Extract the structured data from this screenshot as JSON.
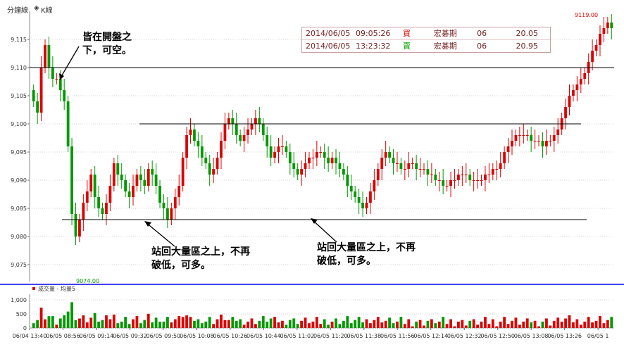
{
  "toolbar": {
    "minute_label": "分鐘線",
    "k_label": "K線"
  },
  "annotations": {
    "top_left": [
      "皆在開盤之",
      "下，可空。"
    ],
    "bottom_left": [
      "站回大量區之上，不再",
      "破低，可多。"
    ],
    "bottom_right": [
      "站回大量區之上，不再",
      "破低，可多。"
    ]
  },
  "trades": [
    {
      "date": "2014/06/05",
      "time": "09:05:26",
      "side": "買",
      "name": "宏碁期",
      "qty": "06",
      "price": "20.05",
      "side_color": "#dd0000"
    },
    {
      "date": "2014/06/05",
      "time": "13:23:32",
      "side": "賣",
      "name": "宏碁期",
      "qty": "06",
      "price": "20.95",
      "side_color": "#00a000"
    }
  ],
  "volume_legend": {
    "label": "成交量 - 均量5"
  },
  "chart_data": {
    "type": "candlestick",
    "price_axis": {
      "ylim": [
        9072,
        9120
      ],
      "ticks": [
        9075,
        9080,
        9085,
        9090,
        9095,
        9100,
        9105,
        9110,
        9115
      ]
    },
    "volume_axis": {
      "ylim": [
        0,
        1200
      ],
      "ticks": [
        0,
        500,
        1000
      ]
    },
    "reference_lines": [
      9110,
      9100,
      9083
    ],
    "high_label": "9119.00",
    "low_label": "9074.00",
    "x_tick_labels": [
      "06/04 13:40",
      "06/05 08:56",
      "06/05 09:14",
      "06/05 09:32",
      "06/05 09:50",
      "06/05 10:08",
      "06/05 10:26",
      "06/05 10:44",
      "06/05 11:02",
      "06/05 11:20",
      "06/05 11:38",
      "06/05 11:56",
      "06/05 12:14",
      "06/05 12:32",
      "06/05 12:50",
      "06/05 13:08",
      "06/05 13:26",
      "06/05 1"
    ],
    "closes": [
      9104,
      9102,
      9110,
      9114,
      9110,
      9108,
      9108,
      9106,
      9104,
      9096,
      9084,
      9080,
      9083,
      9086,
      9088,
      9091,
      9087,
      9085,
      9084,
      9086,
      9089,
      9093,
      9091,
      9090,
      9088,
      9087,
      9089,
      9091,
      9090,
      9089,
      9092,
      9091,
      9089,
      9086,
      9085,
      9083,
      9085,
      9087,
      9089,
      9094,
      9098,
      9099,
      9097,
      9096,
      9094,
      9093,
      9091,
      9092,
      9094,
      9097,
      9100,
      9101,
      9100,
      9098,
      9097,
      9098,
      9099,
      9100,
      9101,
      9100,
      9098,
      9096,
      9094,
      9095,
      9096,
      9096,
      9095,
      9093,
      9092,
      9091,
      9092,
      9093,
      9094,
      9094,
      9095,
      9095,
      9094,
      9093,
      9094,
      9093,
      9092,
      9091,
      9089,
      9088,
      9087,
      9086,
      9085,
      9086,
      9088,
      9090,
      9092,
      9094,
      9095,
      9094,
      9093,
      9093,
      9092,
      9092,
      9093,
      9093,
      9092,
      9092,
      9092,
      9091,
      9091,
      9090,
      9090,
      9089,
      9089,
      9090,
      9090,
      9091,
      9091,
      9091,
      9090,
      9090,
      9090,
      9090,
      9091,
      9091,
      9092,
      9092,
      9093,
      9095,
      9096,
      9097,
      9098,
      9098,
      9098,
      9098,
      9097,
      9097,
      9097,
      9096,
      9097,
      9097,
      9098,
      9099,
      9101,
      9103,
      9105,
      9106,
      9107,
      9108,
      9109,
      9111,
      9113,
      9114,
      9116,
      9117,
      9118,
      9117
    ]
  }
}
